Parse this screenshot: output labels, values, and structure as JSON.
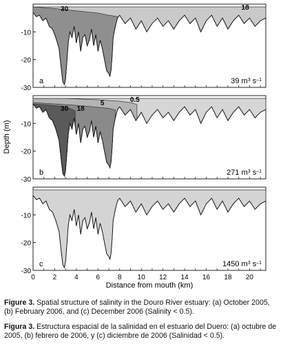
{
  "chart_data": {
    "type": "area",
    "xlabel": "Distance from mouth (km)",
    "ylabel": "Depth (m)",
    "xlim": [
      0,
      21.5
    ],
    "ylim": [
      -30,
      0
    ],
    "x_ticks": [
      0,
      2,
      4,
      6,
      8,
      10,
      12,
      14,
      16,
      18,
      20
    ],
    "y_ticks": [
      -10,
      -20,
      -30
    ],
    "grid": false,
    "panels": [
      {
        "id": "a",
        "flow": "39 m³ s⁻¹",
        "flow_value": "39 m",
        "flow_unit_sup": "3",
        "flow_rest": " s",
        "flow_exp": "–1",
        "isohaline_labels": [
          {
            "text": "30",
            "x": 2.9,
            "y": -2.5
          },
          {
            "text": "18",
            "x": 19.6,
            "y": -2.0
          }
        ]
      },
      {
        "id": "b",
        "flow": "271 m³ s⁻¹",
        "flow_value": "271 m",
        "flow_unit_sup": "3",
        "flow_rest": " s",
        "flow_exp": "–1",
        "isohaline_labels": [
          {
            "text": "0.5",
            "x": 9.4,
            "y": -2.2
          },
          {
            "text": "5",
            "x": 6.4,
            "y": -3.5
          },
          {
            "text": "18",
            "x": 4.4,
            "y": -5.4
          },
          {
            "text": "30",
            "x": 2.9,
            "y": -5.4
          }
        ]
      },
      {
        "id": "c",
        "flow": "1450 m³ s⁻¹",
        "flow_value": "1450 m",
        "flow_unit_sup": "3",
        "flow_rest": " s",
        "flow_exp": "–1",
        "isohaline_labels": []
      }
    ],
    "bathymetry": {
      "x": [
        0,
        0.3,
        0.6,
        0.9,
        1.2,
        1.5,
        1.8,
        2.1,
        2.4,
        2.6,
        2.75,
        2.9,
        3.0,
        3.1,
        3.25,
        3.4,
        3.6,
        3.8,
        4.0,
        4.2,
        4.4,
        4.6,
        4.8,
        5.0,
        5.2,
        5.4,
        5.6,
        5.8,
        6.0,
        6.2,
        6.4,
        6.6,
        6.8,
        7.0,
        7.1,
        7.2,
        7.3,
        7.4,
        7.6,
        7.8,
        8.0,
        8.5,
        9.0,
        9.5,
        10.0,
        10.5,
        11.0,
        11.5,
        12.0,
        12.5,
        13.0,
        13.5,
        14.0,
        14.5,
        15.0,
        15.5,
        16.0,
        16.5,
        17.0,
        17.5,
        18.0,
        18.5,
        19.0,
        19.5,
        20.0,
        20.5,
        21.0,
        21.5
      ],
      "depth": [
        -3,
        -4.5,
        -4,
        -6,
        -5,
        -8,
        -9,
        -12,
        -16,
        -23,
        -28,
        -29,
        -27,
        -22,
        -14,
        -10,
        -12,
        -8,
        -14,
        -10,
        -17,
        -12,
        -11,
        -15,
        -13,
        -9,
        -15,
        -11,
        -17,
        -13,
        -16,
        -20,
        -24,
        -25,
        -26,
        -24,
        -19,
        -12,
        -8,
        -5,
        -4,
        -7,
        -5,
        -9,
        -6,
        -10,
        -7,
        -5,
        -8,
        -6,
        -9,
        -6,
        -4,
        -7,
        -5,
        -10,
        -6,
        -4,
        -8,
        -5,
        -9,
        -6,
        -4,
        -7,
        -5,
        -8,
        -6,
        -5
      ]
    }
  },
  "caption": {
    "en_lead": "Figure 3.",
    "en_text": " Spatial structure of salinity in the Douro River estuary: (a) October 2005, (b) February 2006, and (c) December 2006 (Salinity < 0.5).",
    "es_lead": "Figura 3.",
    "es_text": " Estructura espacial de la salinidad en el estuario del Duero: (a) octubre de 2005, (b) febrero de 2006, y (c) diciembre de 2006 (Salinidad < 0.5)."
  }
}
